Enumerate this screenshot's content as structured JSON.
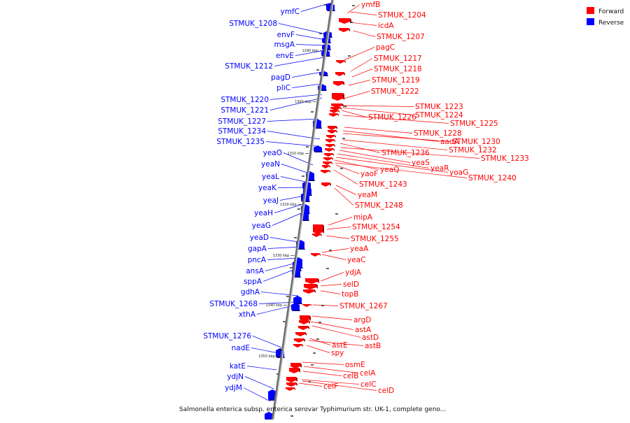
{
  "caption": "Salmonella enterica subsp. enterica serovar Typhimurium str. UK-1, complete geno...",
  "legend": [
    {
      "label": "Forward",
      "color": "#ff0000"
    },
    {
      "label": "Reverse",
      "color": "#0000ff"
    }
  ],
  "colors": {
    "forward": "#ff0000",
    "reverse": "#0000ff",
    "backbone": "#6e6e6e"
  },
  "scale_ticks": [
    "1290 kbp",
    "1300 kbp",
    "1310 kbp",
    "1320 kbp",
    "1330 kbp",
    "1340 kbp",
    "1350 kbp"
  ],
  "reverse_genes": [
    "ymfC",
    "STMUK_1208",
    "envF",
    "msgA",
    "envE",
    "STMUK_1212",
    "pagD",
    "pliC",
    "STMUK_1220",
    "STMUK_1221",
    "STMUK_1227",
    "STMUK_1234",
    "STMUK_1235",
    "yeaO",
    "yeaN",
    "yeaL",
    "yeaK",
    "yeaJ",
    "yeaH",
    "yeaG",
    "yeaD",
    "gapA",
    "pncA",
    "ansA",
    "sppA",
    "gdhA",
    "STMUK_1268",
    "xthA",
    "STMUK_1276",
    "nadE",
    "katE",
    "ydjN",
    "ydjM"
  ],
  "forward_genes": [
    "ymfB",
    "STMUK_1204",
    "icdA",
    "STMUK_1207",
    "pagC",
    "STMUK_1217",
    "STMUK_1218",
    "STMUK_1219",
    "STMUK_1222",
    "STMUK_1223",
    "STMUK_1224",
    "STMUK_1226",
    "STMUK_1225",
    "STMUK_1228",
    "aadA",
    "STMUK_1230",
    "STMUK_1232",
    "STMUK_1236",
    "STMUK_1233",
    "yeaS",
    "yeaR",
    "yoaG",
    "yaoF",
    "yeaQ",
    "STMUK_1240",
    "STMUK_1243",
    "yeaM",
    "STMUK_1248",
    "mipA",
    "STMUK_1254",
    "STMUK_1255",
    "yeaA",
    "yeaC",
    "ydjA",
    "selD",
    "topB",
    "STMUK_1267",
    "argD",
    "astA",
    "astD",
    "astE",
    "astB",
    "spy",
    "osmE",
    "celA",
    "celB",
    "celC",
    "celF",
    "celD"
  ]
}
